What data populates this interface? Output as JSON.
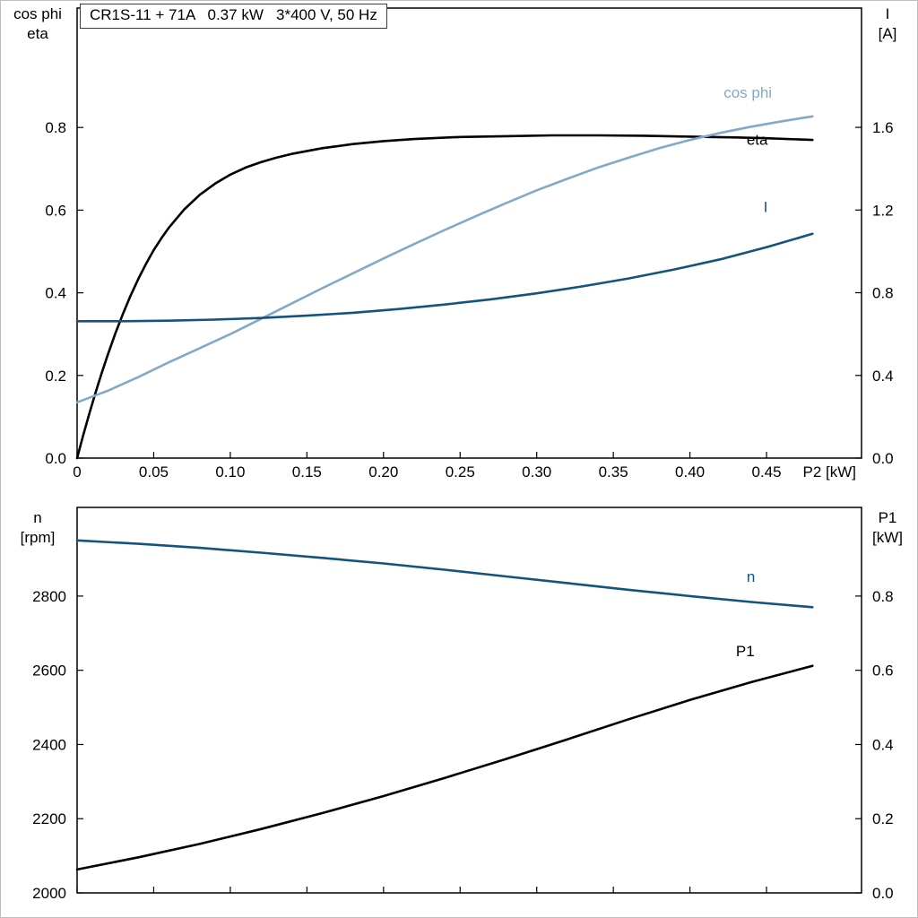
{
  "title_box": {
    "text": "CR1S-11 + 71A   0.37 kW   3*400 V, 50 Hz"
  },
  "colors": {
    "black": "#000000",
    "light_blue": "#84a9c7",
    "dark_blue": "#14537d",
    "frame": "#bdbdbd"
  },
  "chart_data": [
    {
      "id": "top",
      "type": "line",
      "title": "CR1S-11 + 71A 0.37 kW 3*400 V, 50 Hz",
      "grid": false,
      "x_axis": {
        "min": 0,
        "max": 0.512,
        "label": "P2 [kW]",
        "ticks": [
          {
            "v": 0,
            "t": "0"
          },
          {
            "v": 0.05,
            "t": "0.05"
          },
          {
            "v": 0.1,
            "t": "0.10"
          },
          {
            "v": 0.15,
            "t": "0.15"
          },
          {
            "v": 0.2,
            "t": "0.20"
          },
          {
            "v": 0.25,
            "t": "0.25"
          },
          {
            "v": 0.3,
            "t": "0.30"
          },
          {
            "v": 0.35,
            "t": "0.35"
          },
          {
            "v": 0.4,
            "t": "0.40"
          },
          {
            "v": 0.45,
            "t": "0.45"
          }
        ]
      },
      "left_axis": {
        "label_lines": [
          "cos phi",
          "eta"
        ],
        "min": 0,
        "max": 1.089,
        "ticks": [
          {
            "v": 0.0,
            "t": "0.0"
          },
          {
            "v": 0.2,
            "t": "0.2"
          },
          {
            "v": 0.4,
            "t": "0.4"
          },
          {
            "v": 0.6,
            "t": "0.6"
          },
          {
            "v": 0.8,
            "t": "0.8"
          }
        ]
      },
      "right_axis": {
        "label_lines": [
          "I",
          "[A]"
        ],
        "min": 0,
        "max": 2.177,
        "ticks": [
          {
            "v": 0.0,
            "t": "0.0"
          },
          {
            "v": 0.4,
            "t": "0.4"
          },
          {
            "v": 0.8,
            "t": "0.8"
          },
          {
            "v": 1.2,
            "t": "1.2"
          },
          {
            "v": 1.6,
            "t": "1.6"
          }
        ]
      },
      "series": [
        {
          "name": "eta",
          "axis": "left",
          "color": "#000000",
          "label": "eta",
          "label_at": [
            0.437,
            0.758
          ],
          "points": [
            [
              0,
              0
            ],
            [
              0.004,
              0.055
            ],
            [
              0.008,
              0.108
            ],
            [
              0.012,
              0.158
            ],
            [
              0.016,
              0.205
            ],
            [
              0.02,
              0.25
            ],
            [
              0.025,
              0.302
            ],
            [
              0.03,
              0.35
            ],
            [
              0.035,
              0.394
            ],
            [
              0.04,
              0.434
            ],
            [
              0.045,
              0.47
            ],
            [
              0.05,
              0.503
            ],
            [
              0.055,
              0.532
            ],
            [
              0.06,
              0.558
            ],
            [
              0.07,
              0.602
            ],
            [
              0.08,
              0.637
            ],
            [
              0.09,
              0.664
            ],
            [
              0.1,
              0.686
            ],
            [
              0.11,
              0.703
            ],
            [
              0.12,
              0.716
            ],
            [
              0.13,
              0.727
            ],
            [
              0.14,
              0.736
            ],
            [
              0.16,
              0.75
            ],
            [
              0.18,
              0.76
            ],
            [
              0.2,
              0.767
            ],
            [
              0.22,
              0.772
            ],
            [
              0.25,
              0.777
            ],
            [
              0.28,
              0.779
            ],
            [
              0.31,
              0.781
            ],
            [
              0.34,
              0.781
            ],
            [
              0.37,
              0.78
            ],
            [
              0.4,
              0.778
            ],
            [
              0.43,
              0.776
            ],
            [
              0.45,
              0.774
            ],
            [
              0.48,
              0.77
            ]
          ]
        },
        {
          "name": "cos phi",
          "axis": "left",
          "color": "#84a9c7",
          "label": "cos phi",
          "label_at": [
            0.422,
            0.872
          ],
          "points": [
            [
              0,
              0.135
            ],
            [
              0.02,
              0.163
            ],
            [
              0.04,
              0.196
            ],
            [
              0.06,
              0.232
            ],
            [
              0.08,
              0.266
            ],
            [
              0.1,
              0.3
            ],
            [
              0.12,
              0.337
            ],
            [
              0.14,
              0.374
            ],
            [
              0.16,
              0.411
            ],
            [
              0.18,
              0.447
            ],
            [
              0.2,
              0.483
            ],
            [
              0.22,
              0.518
            ],
            [
              0.24,
              0.552
            ],
            [
              0.26,
              0.585
            ],
            [
              0.28,
              0.617
            ],
            [
              0.3,
              0.648
            ],
            [
              0.32,
              0.676
            ],
            [
              0.34,
              0.703
            ],
            [
              0.36,
              0.727
            ],
            [
              0.38,
              0.75
            ],
            [
              0.4,
              0.77
            ],
            [
              0.42,
              0.787
            ],
            [
              0.44,
              0.802
            ],
            [
              0.46,
              0.815
            ],
            [
              0.48,
              0.827
            ]
          ]
        },
        {
          "name": "I",
          "axis": "right",
          "color": "#14537d",
          "label": "I",
          "label_at": [
            0.448,
            1.19
          ],
          "points": [
            [
              0,
              0.662
            ],
            [
              0.03,
              0.662
            ],
            [
              0.06,
              0.665
            ],
            [
              0.09,
              0.67
            ],
            [
              0.12,
              0.678
            ],
            [
              0.15,
              0.689
            ],
            [
              0.18,
              0.703
            ],
            [
              0.21,
              0.721
            ],
            [
              0.24,
              0.743
            ],
            [
              0.27,
              0.768
            ],
            [
              0.3,
              0.797
            ],
            [
              0.33,
              0.831
            ],
            [
              0.36,
              0.869
            ],
            [
              0.39,
              0.913
            ],
            [
              0.42,
              0.962
            ],
            [
              0.45,
              1.02
            ],
            [
              0.48,
              1.085
            ]
          ]
        }
      ]
    },
    {
      "id": "bottom",
      "type": "line",
      "title": "",
      "grid": false,
      "x_axis": {
        "min": 0,
        "max": 0.512,
        "label": "",
        "ticks": [
          {
            "v": 0,
            "t": ""
          },
          {
            "v": 0.05,
            "t": ""
          },
          {
            "v": 0.1,
            "t": ""
          },
          {
            "v": 0.15,
            "t": ""
          },
          {
            "v": 0.2,
            "t": ""
          },
          {
            "v": 0.25,
            "t": ""
          },
          {
            "v": 0.3,
            "t": ""
          },
          {
            "v": 0.35,
            "t": ""
          },
          {
            "v": 0.4,
            "t": ""
          },
          {
            "v": 0.45,
            "t": ""
          }
        ]
      },
      "left_axis": {
        "label_lines": [
          "n",
          "[rpm]"
        ],
        "min": 2000,
        "max": 3039,
        "ticks": [
          {
            "v": 2000,
            "t": "2000"
          },
          {
            "v": 2200,
            "t": "2200"
          },
          {
            "v": 2400,
            "t": "2400"
          },
          {
            "v": 2600,
            "t": "2600"
          },
          {
            "v": 2800,
            "t": "2800"
          }
        ]
      },
      "right_axis": {
        "label_lines": [
          "P1",
          "[kW]"
        ],
        "min": 0,
        "max": 1.039,
        "ticks": [
          {
            "v": 0.0,
            "t": "0.0"
          },
          {
            "v": 0.2,
            "t": "0.2"
          },
          {
            "v": 0.4,
            "t": "0.4"
          },
          {
            "v": 0.6,
            "t": "0.6"
          },
          {
            "v": 0.8,
            "t": "0.8"
          }
        ]
      },
      "series": [
        {
          "name": "n",
          "axis": "left",
          "color": "#14537d",
          "label": "n",
          "label_at": [
            0.437,
            2838
          ],
          "points": [
            [
              0,
              2950
            ],
            [
              0.04,
              2941
            ],
            [
              0.08,
              2930
            ],
            [
              0.12,
              2917
            ],
            [
              0.16,
              2903
            ],
            [
              0.2,
              2888
            ],
            [
              0.24,
              2871
            ],
            [
              0.28,
              2853
            ],
            [
              0.32,
              2835
            ],
            [
              0.36,
              2817
            ],
            [
              0.4,
              2800
            ],
            [
              0.44,
              2784
            ],
            [
              0.48,
              2770
            ]
          ]
        },
        {
          "name": "P1",
          "axis": "right",
          "color": "#000000",
          "label": "P1",
          "label_at": [
            0.43,
            0.638
          ],
          "points": [
            [
              0,
              0.063
            ],
            [
              0.04,
              0.096
            ],
            [
              0.08,
              0.132
            ],
            [
              0.12,
              0.172
            ],
            [
              0.16,
              0.215
            ],
            [
              0.2,
              0.261
            ],
            [
              0.24,
              0.31
            ],
            [
              0.28,
              0.361
            ],
            [
              0.32,
              0.414
            ],
            [
              0.36,
              0.468
            ],
            [
              0.4,
              0.52
            ],
            [
              0.44,
              0.568
            ],
            [
              0.48,
              0.612
            ]
          ]
        }
      ]
    }
  ]
}
